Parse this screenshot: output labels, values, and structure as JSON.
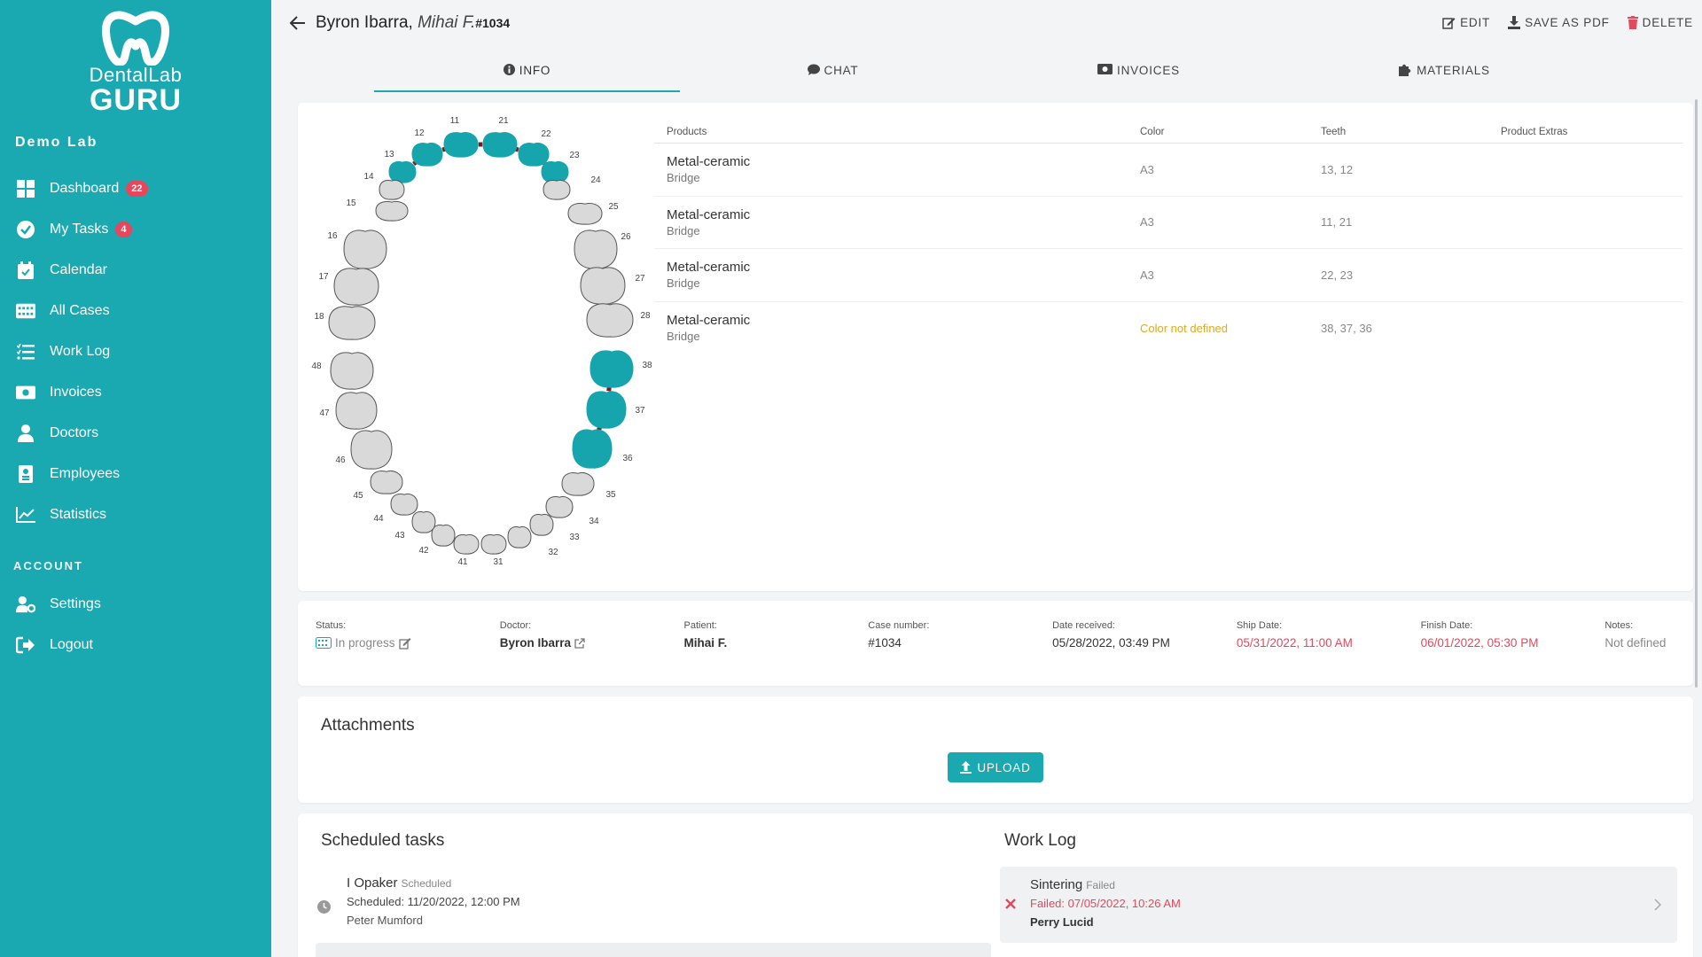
{
  "brand": {
    "line1": "DentalLab",
    "line2": "GURU"
  },
  "lab_name": "Demo Lab",
  "nav": [
    {
      "label": "Dashboard",
      "icon": "dashboard-icon",
      "badge": "22"
    },
    {
      "label": "My Tasks",
      "icon": "check-circle-icon",
      "badge": "4"
    },
    {
      "label": "Calendar",
      "icon": "calendar-icon"
    },
    {
      "label": "All Cases",
      "icon": "cases-icon"
    },
    {
      "label": "Work Log",
      "icon": "list-icon"
    },
    {
      "label": "Invoices",
      "icon": "money-icon"
    },
    {
      "label": "Doctors",
      "icon": "doctor-icon"
    },
    {
      "label": "Employees",
      "icon": "badge-icon"
    },
    {
      "label": "Statistics",
      "icon": "chart-icon"
    }
  ],
  "account_label": "ACCOUNT",
  "account_nav": [
    {
      "label": "Settings",
      "icon": "user-gear-icon"
    },
    {
      "label": "Logout",
      "icon": "logout-icon"
    }
  ],
  "header": {
    "doctor": "Byron Ibarra",
    "separator": ",",
    "patient": "Mihai F.",
    "case_number": "#1034",
    "actions": {
      "edit": "EDIT",
      "pdf": "SAVE AS PDF",
      "delete": "DELETE"
    }
  },
  "tabs": {
    "info": "INFO",
    "chat": "CHAT",
    "invoices": "INVOICES",
    "materials": "MATERIALS"
  },
  "products": {
    "headers": {
      "products": "Products",
      "color": "Color",
      "teeth": "Teeth",
      "extras": "Product Extras"
    },
    "rows": [
      {
        "name": "Metal-ceramic",
        "type": "Bridge",
        "color": "A3",
        "teeth": "13, 12",
        "extras": ""
      },
      {
        "name": "Metal-ceramic",
        "type": "Bridge",
        "color": "A3",
        "teeth": "11, 21",
        "extras": ""
      },
      {
        "name": "Metal-ceramic",
        "type": "Bridge",
        "color": "A3",
        "teeth": "22, 23",
        "extras": ""
      },
      {
        "name": "Metal-ceramic",
        "type": "Bridge",
        "color": "Color not defined",
        "teeth": "38, 37, 36",
        "extras": ""
      }
    ]
  },
  "teeth": {
    "selected_color": "#17a5ad",
    "normal_color": "#d9d9d9",
    "labels": [
      "11",
      "12",
      "13",
      "14",
      "15",
      "16",
      "17",
      "18",
      "21",
      "22",
      "23",
      "24",
      "25",
      "26",
      "27",
      "28",
      "31",
      "32",
      "33",
      "34",
      "35",
      "36",
      "37",
      "38",
      "41",
      "42",
      "43",
      "44",
      "45",
      "46",
      "47",
      "48"
    ],
    "selected": [
      "11",
      "12",
      "13",
      "21",
      "22",
      "23",
      "36",
      "37",
      "38"
    ]
  },
  "case_info": {
    "status_label": "Status:",
    "status": "In progress",
    "doctor_label": "Doctor:",
    "doctor": "Byron Ibarra",
    "patient_label": "Patient:",
    "patient": "Mihai F.",
    "case_label": "Case number:",
    "case": "#1034",
    "received_label": "Date received:",
    "received": "05/28/2022, 03:49 PM",
    "ship_label": "Ship Date:",
    "ship": "05/31/2022, 11:00 AM",
    "finish_label": "Finish Date:",
    "finish": "06/01/2022, 05:30 PM",
    "notes_label": "Notes:",
    "notes": "Not defined"
  },
  "attachments": {
    "title": "Attachments",
    "upload": "UPLOAD"
  },
  "scheduled": {
    "title": "Scheduled tasks",
    "item": {
      "name": "I Opaker",
      "state": "Scheduled",
      "time": "Scheduled: 11/20/2022, 12:00 PM",
      "person": "Peter Mumford"
    }
  },
  "worklog": {
    "title": "Work Log",
    "item": {
      "name": "Sintering",
      "state": "Failed",
      "time": "Failed: 07/05/2022, 10:26 AM",
      "person": "Perry Lucid"
    }
  }
}
